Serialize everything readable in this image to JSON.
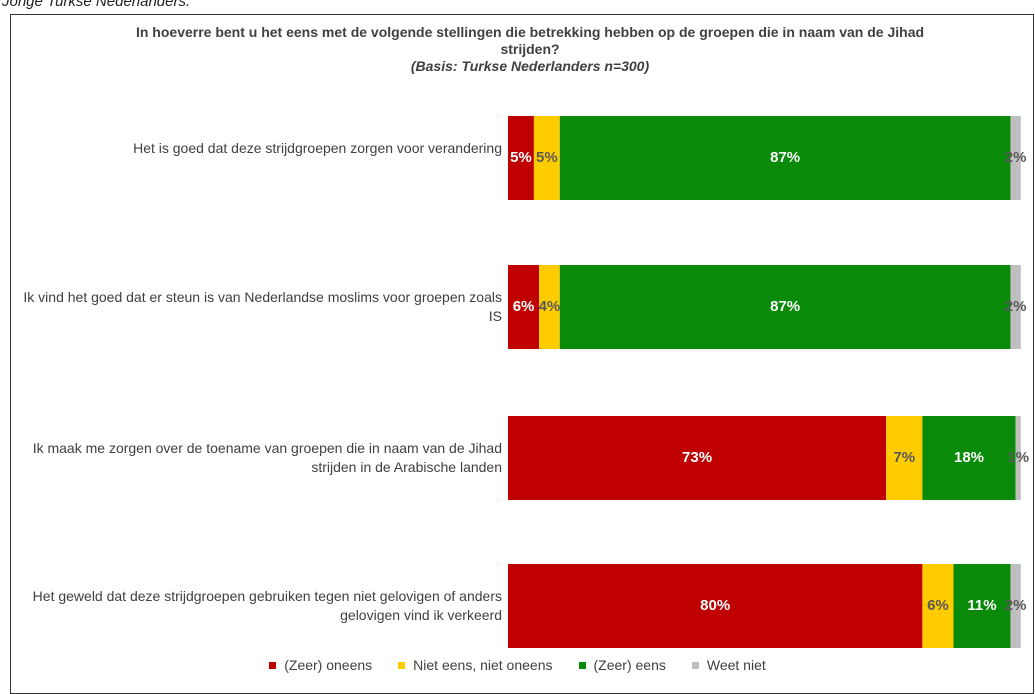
{
  "caption": "Jonge Turkse Nederlanders.",
  "chart_data": {
    "type": "stacked-bar-horizontal",
    "title": "In hoeverre bent u het eens met de volgende stellingen die betrekking hebben op de groepen die in naam van de Jihad strijden?",
    "subtitle": "(Basis: Turkse Nederlanders n=300)",
    "categories": [
      "Het is goed dat deze strijdgroepen zorgen voor verandering",
      "Ik vind het goed dat er steun is van Nederlandse moslims voor groepen zoals IS",
      "Ik maak me zorgen over de toename van groepen die in naam van de Jihad strijden in de Arabische landen",
      "Het geweld dat deze strijdgroepen gebruiken tegen niet gelovigen of anders gelovigen vind ik verkeerd"
    ],
    "xlim": [
      0,
      100
    ],
    "series": [
      {
        "name": "(Zeer) oneens",
        "color": "#c00000",
        "label_color": "#ffffff",
        "values": [
          5,
          6,
          73,
          80
        ],
        "value_labels": [
          "5%",
          "6%",
          "73%",
          "80%"
        ]
      },
      {
        "name": "Niet eens, niet oneens",
        "color": "#ffcc00",
        "label_color": "#595959",
        "values": [
          5,
          4,
          7,
          6
        ],
        "value_labels": [
          "5%",
          "4%",
          "7%",
          "6%"
        ]
      },
      {
        "name": "(Zeer) eens",
        "color": "#098a09",
        "label_color": "#ffffff",
        "values": [
          87,
          87,
          18,
          11
        ],
        "value_labels": [
          "87%",
          "87%",
          "18%",
          "11%"
        ]
      },
      {
        "name": "Weet niet",
        "color": "#bfbfbf",
        "label_color": "#595959",
        "values": [
          2,
          2,
          1,
          2
        ],
        "value_labels": [
          "2%",
          "2%",
          "1%",
          "2%"
        ]
      }
    ],
    "legend": "bottom"
  }
}
